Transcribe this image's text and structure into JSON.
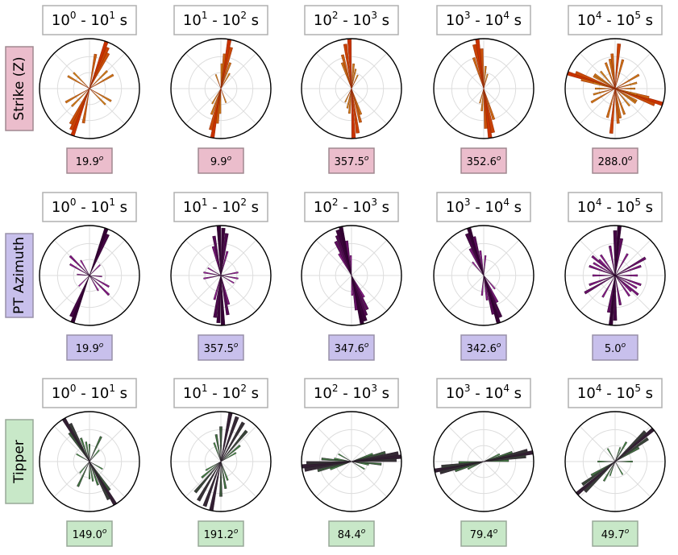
{
  "chart_data": {
    "type": "rose",
    "columns": [
      {
        "main": "10",
        "exp1": "0",
        "sep": " - ",
        "exp2": "1",
        "unit": " s"
      },
      {
        "main": "10",
        "exp1": "1",
        "sep": " - ",
        "exp2": "2",
        "unit": " s"
      },
      {
        "main": "10",
        "exp1": "2",
        "sep": " - ",
        "exp2": "3",
        "unit": " s"
      },
      {
        "main": "10",
        "exp1": "3",
        "sep": " - ",
        "exp2": "4",
        "unit": " s"
      },
      {
        "main": "10",
        "exp1": "4",
        "sep": " - ",
        "exp2": "5",
        "unit": " s"
      }
    ],
    "rows": [
      {
        "label": "Strike (Z)",
        "bg": "#ebbdcc",
        "border": "#a08890",
        "lo": "#c8c832",
        "hi": "#c83200",
        "values": [
          "19.9",
          "9.9",
          "357.5",
          "352.6",
          "288.0"
        ],
        "degree_symbol": "o",
        "roses": [
          {
            "petals": [
              [
                19.9,
                1.0
              ],
              [
                24,
                0.9
              ],
              [
                28,
                0.8
              ],
              [
                45,
                0.5
              ],
              [
                60,
                0.55
              ],
              [
                120,
                0.5
              ],
              [
                135,
                0.45
              ],
              [
                10,
                0.7
              ]
            ]
          },
          {
            "petals": [
              [
                9.9,
                1.0
              ],
              [
                14,
                0.85
              ],
              [
                6,
                0.7
              ],
              [
                20,
                0.55
              ],
              [
                2,
                0.5
              ],
              [
                30,
                0.35
              ],
              [
                160,
                0.3
              ]
            ]
          },
          {
            "petals": [
              [
                357.5,
                1.0
              ],
              [
                352,
                0.9
              ],
              [
                345,
                0.7
              ],
              [
                340,
                0.55
              ],
              [
                5,
                0.5
              ],
              [
                12,
                0.4
              ],
              [
                25,
                0.3
              ]
            ]
          },
          {
            "petals": [
              [
                352.6,
                1.0
              ],
              [
                348,
                0.9
              ],
              [
                357,
                0.8
              ],
              [
                342,
                0.65
              ],
              [
                5,
                0.45
              ],
              [
                15,
                0.3
              ]
            ]
          },
          {
            "petals": [
              [
                288.0,
                1.0
              ],
              [
                292,
                0.85
              ],
              [
                285,
                0.7
              ],
              [
                355,
                0.7
              ],
              [
                5,
                0.9
              ],
              [
                340,
                0.55
              ],
              [
                305,
                0.5
              ],
              [
                60,
                0.55
              ],
              [
                75,
                0.45
              ],
              [
                90,
                0.4
              ],
              [
                105,
                0.45
              ],
              [
                120,
                0.5
              ],
              [
                140,
                0.45
              ],
              [
                170,
                0.6
              ],
              [
                15,
                0.6
              ]
            ]
          }
        ]
      },
      {
        "label": "PT Azimuth",
        "bg": "#c8c0ec",
        "border": "#9890a8",
        "lo": "#dc32dc",
        "hi": "#320032",
        "values": [
          "19.9",
          "357.5",
          "347.6",
          "342.6",
          "5.0"
        ],
        "degree_symbol": "o",
        "roses": [
          {
            "petals": [
              [
                19.9,
                1.0
              ],
              [
                24,
                0.9
              ],
              [
                135,
                0.55
              ],
              [
                120,
                0.45
              ],
              [
                150,
                0.35
              ],
              [
                45,
                0.3
              ],
              [
                95,
                0.25
              ]
            ]
          },
          {
            "petals": [
              [
                357.5,
                1.0
              ],
              [
                3,
                0.95
              ],
              [
                8,
                0.85
              ],
              [
                350,
                0.8
              ],
              [
                345,
                0.6
              ],
              [
                15,
                0.5
              ],
              [
                100,
                0.35
              ],
              [
                80,
                0.35
              ],
              [
                120,
                0.3
              ]
            ]
          },
          {
            "petals": [
              [
                347.6,
                1.0
              ],
              [
                343,
                0.95
              ],
              [
                340,
                0.85
              ],
              [
                335,
                0.75
              ],
              [
                352,
                0.7
              ],
              [
                330,
                0.5
              ],
              [
                358,
                0.4
              ]
            ]
          },
          {
            "petals": [
              [
                342.6,
                1.0
              ],
              [
                338,
                0.9
              ],
              [
                346,
                0.8
              ],
              [
                333,
                0.6
              ],
              [
                352,
                0.5
              ],
              [
                320,
                0.35
              ],
              [
                5,
                0.4
              ]
            ]
          },
          {
            "petals": [
              [
                5.0,
                1.0
              ],
              [
                0,
                0.9
              ],
              [
                10,
                0.75
              ],
              [
                350,
                0.6
              ],
              [
                60,
                0.7
              ],
              [
                70,
                0.55
              ],
              [
                110,
                0.55
              ],
              [
                130,
                0.6
              ],
              [
                145,
                0.5
              ],
              [
                300,
                0.5
              ],
              [
                315,
                0.45
              ],
              [
                90,
                0.45
              ],
              [
                30,
                0.5
              ]
            ]
          }
        ]
      },
      {
        "label": "Tipper",
        "bg": "#c8e8c8",
        "border": "#98a898",
        "lo": "#50dc50",
        "hi": "#321e32",
        "values": [
          "149.0",
          "191.2",
          "84.4",
          "79.4",
          "49.7"
        ],
        "degree_symbol": "o",
        "roses": [
          {
            "petals": [
              [
                149.0,
                1.0
              ],
              [
                153,
                0.85
              ],
              [
                145,
                0.7
              ],
              [
                160,
                0.5
              ],
              [
                25,
                0.55
              ],
              [
                170,
                0.4
              ],
              [
                180,
                0.35
              ],
              [
                120,
                0.3
              ],
              [
                40,
                0.3
              ]
            ]
          },
          {
            "petals": [
              [
                191.2,
                1.0
              ],
              [
                200,
                0.95
              ],
              [
                210,
                0.9
              ],
              [
                220,
                0.8
              ],
              [
                180,
                0.7
              ],
              [
                170,
                0.55
              ],
              [
                230,
                0.5
              ],
              [
                240,
                0.35
              ],
              [
                160,
                0.4
              ]
            ]
          },
          {
            "petals": [
              [
                84.4,
                1.0
              ],
              [
                80,
                0.95
              ],
              [
                88,
                0.9
              ],
              [
                75,
                0.7
              ],
              [
                95,
                0.6
              ],
              [
                70,
                0.45
              ],
              [
                100,
                0.35
              ],
              [
                120,
                0.3
              ]
            ]
          },
          {
            "petals": [
              [
                79.4,
                1.0
              ],
              [
                76,
                0.9
              ],
              [
                83,
                0.85
              ],
              [
                72,
                0.6
              ],
              [
                88,
                0.5
              ],
              [
                65,
                0.35
              ]
            ]
          },
          {
            "petals": [
              [
                49.7,
                1.0
              ],
              [
                45,
                0.85
              ],
              [
                55,
                0.8
              ],
              [
                60,
                0.55
              ],
              [
                30,
                0.45
              ],
              [
                90,
                0.35
              ],
              [
                150,
                0.3
              ],
              [
                200,
                0.3
              ]
            ]
          }
        ]
      }
    ]
  }
}
